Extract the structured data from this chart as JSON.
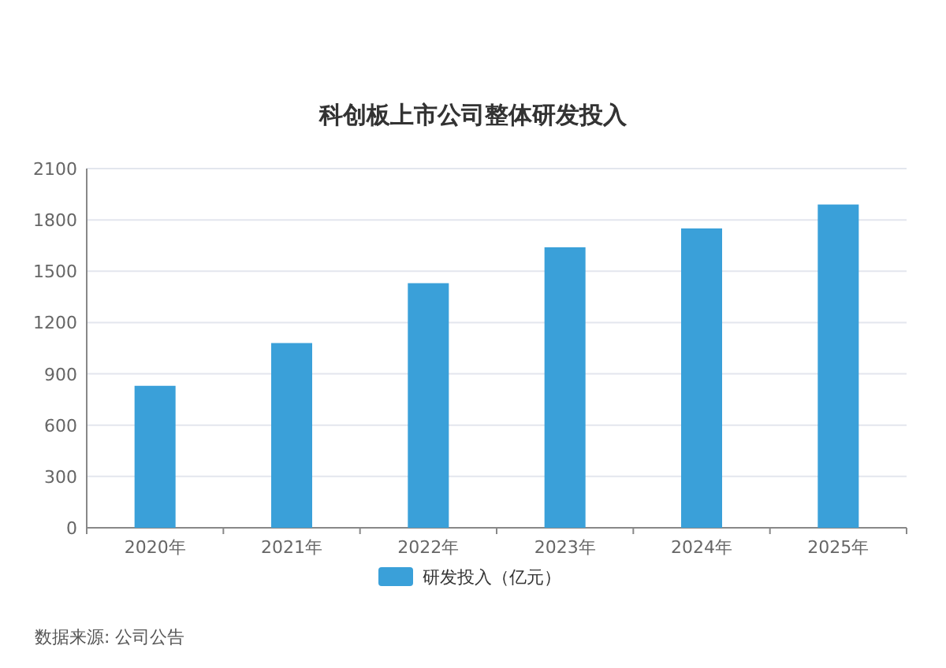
{
  "chart_data": {
    "type": "bar",
    "title": "科创板上市公司整体研发投入",
    "categories": [
      "2020年",
      "2021年",
      "2022年",
      "2023年",
      "2024年",
      "2025年"
    ],
    "series": [
      {
        "name": "研发投入（亿元）",
        "color": "#3aa0d9",
        "values": [
          830,
          1080,
          1430,
          1640,
          1750,
          1890
        ]
      }
    ],
    "ylim": [
      0,
      2100
    ],
    "yticks": [
      0,
      300,
      600,
      900,
      1200,
      1500,
      1800,
      2100
    ],
    "grid": "y",
    "legend": "bottom",
    "annotations": [
      "数据来源: 公司公告"
    ]
  }
}
